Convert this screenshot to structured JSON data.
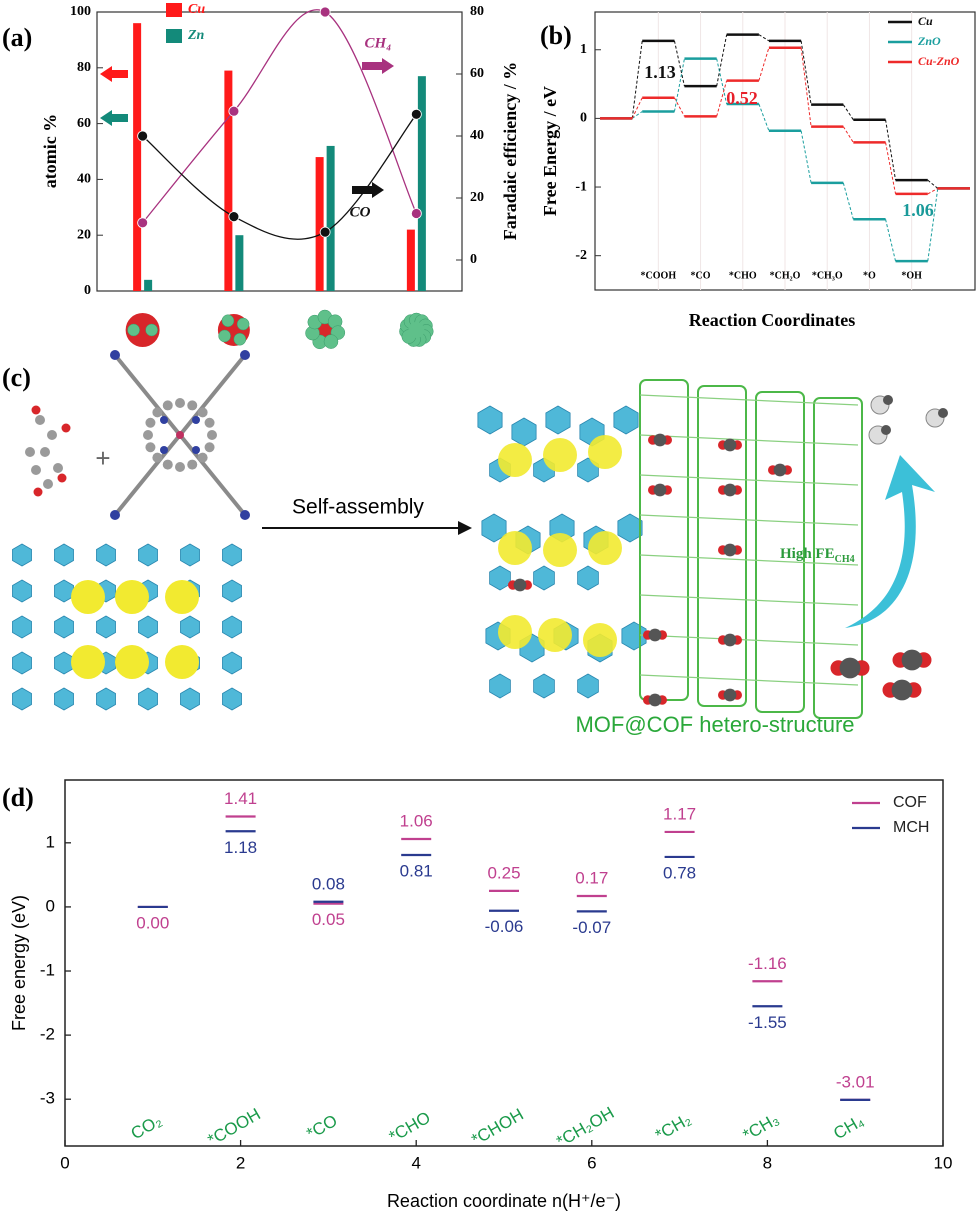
{
  "chart_data": [
    {
      "type": "bar_line",
      "label": "(a)",
      "ylabel": "atomic %",
      "y2label": "Faradaic efficiency / %",
      "categories": [
        null,
        null,
        null,
        null
      ],
      "ylim": [
        0,
        100
      ],
      "yticks": [
        0,
        20,
        40,
        60,
        80,
        100
      ],
      "y2lim": [
        -10,
        80
      ],
      "y2ticks": [
        0,
        20,
        40,
        60,
        80
      ],
      "series": [
        {
          "name": "Cu",
          "color": "#ff1a1a",
          "kind": "bar",
          "values": [
            96,
            79,
            48,
            22
          ]
        },
        {
          "name": "Zn",
          "color": "#138a7a",
          "kind": "bar",
          "values": [
            4,
            20,
            52,
            77
          ]
        },
        {
          "name": "CH₄",
          "color": "#a8327f",
          "kind": "line",
          "axis": "y2",
          "values": [
            12,
            48,
            80,
            15
          ]
        },
        {
          "name": "CO",
          "color": "#111111",
          "kind": "line",
          "axis": "y2",
          "values": [
            40,
            14,
            9,
            47
          ]
        }
      ]
    },
    {
      "type": "energy_steps",
      "label": "(b)",
      "xlabel": "Reaction Coordinates",
      "ylabel": "Free Energy / eV",
      "categories": [
        null,
        "*COOH",
        "*CO",
        "*CHO",
        "*CH₂O",
        "*CH₃O",
        "*O",
        "*OH",
        null
      ],
      "ylim": [
        -2.5,
        1.55
      ],
      "yticks": [
        -2,
        -1,
        0,
        1
      ],
      "legend": "upper right",
      "series": [
        {
          "name": "Cu",
          "color": "#111111",
          "values": [
            0,
            1.13,
            0.47,
            1.22,
            1.13,
            0.2,
            -0.02,
            -0.9,
            -1.02
          ]
        },
        {
          "name": "ZnO",
          "color": "#1a9e9e",
          "values": [
            0,
            0.1,
            0.87,
            0.21,
            -0.18,
            -0.94,
            -1.47,
            -2.08,
            -1.02
          ]
        },
        {
          "name": "Cu-ZnO",
          "color": "#ee2a2a",
          "values": [
            0,
            0.3,
            0.03,
            0.55,
            1.03,
            -0.12,
            -0.35,
            -1.1,
            -1.02
          ]
        }
      ],
      "annotations": [
        {
          "text": "1.13",
          "color": "#111111"
        },
        {
          "text": "0.52",
          "color": "#e8202a"
        },
        {
          "text": "1.06",
          "color": "#1a9a9a"
        }
      ]
    },
    {
      "type": "energy_levels",
      "label": "(d)",
      "xlabel": "Reaction coordinate n(H⁺/e⁻)",
      "ylabel": "Free energy (eV)",
      "x": [
        1,
        2,
        3,
        4,
        5,
        6,
        7,
        8,
        9
      ],
      "xlim": [
        0,
        10
      ],
      "xticks": [
        0,
        2,
        4,
        6,
        8,
        10
      ],
      "ylim": [
        -3.73,
        1.98
      ],
      "yticks": [
        -3,
        -2,
        -1,
        0,
        1
      ],
      "legend": "upper right",
      "step_labels": [
        "CO₂",
        "*COOH",
        "*CO",
        "*CHO",
        "*CHOH",
        "*CH₂OH",
        "*CH₂",
        "*CH₃",
        "CH₄"
      ],
      "step_color": "#1a9a4a",
      "series": [
        {
          "name": "COF",
          "color": "#c0408f",
          "values": [
            0,
            1.41,
            0.05,
            1.06,
            0.25,
            0.17,
            1.17,
            -1.16,
            -3.01
          ],
          "value_labels": [
            "0.00",
            "1.41",
            "0.05",
            "1.06",
            "0.25",
            "0.17",
            "1.17",
            "-1.16",
            "-3.01"
          ]
        },
        {
          "name": "MCH",
          "color": "#2a3a8f",
          "values": [
            0,
            1.18,
            0.08,
            0.81,
            -0.06,
            -0.07,
            0.78,
            -1.55,
            -3.01
          ],
          "value_labels": [
            null,
            "1.18",
            "0.08",
            "0.81",
            "-0.06",
            "-0.07",
            "0.78",
            "-1.55",
            null
          ]
        }
      ]
    }
  ],
  "diagram": {
    "label": "(c)",
    "arrow_label": "Self-assembly",
    "fe_label": {
      "text": "High FE",
      "subscript": "CH4"
    },
    "caption": "MOF@COF hetero-structure"
  }
}
